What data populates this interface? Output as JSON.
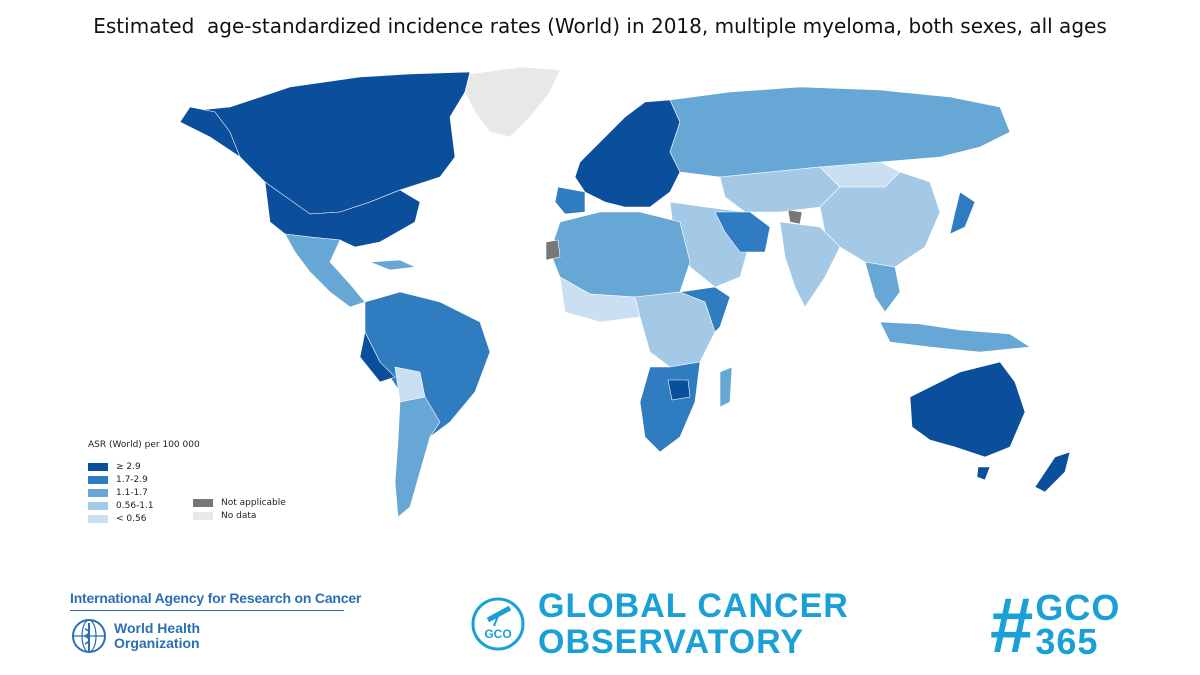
{
  "title": "Estimated  age-standardized incidence rates (World) in 2018, multiple myeloma, both sexes, all ages",
  "colors": {
    "ge_2_9": "#0b4f9c",
    "c1_7_2_9": "#2f7cc1",
    "c1_1_1_7": "#66a7d6",
    "c0_56_1_1": "#a3c9e6",
    "lt_0_56": "#cbdff2",
    "not_applicable": "#777777",
    "no_data": "#e8e8e8"
  },
  "legend": {
    "title": "ASR (World) per 100 000",
    "items": [
      {
        "label": "≥ 2.9",
        "color": "#0b4f9c"
      },
      {
        "label": "1.7-2.9",
        "color": "#2f7cc1"
      },
      {
        "label": "1.1-1.7",
        "color": "#66a7d6"
      },
      {
        "label": "0.56-1.1",
        "color": "#a3c9e6"
      },
      {
        "label": "< 0.56",
        "color": "#cbdff2"
      }
    ],
    "extra": [
      {
        "label": "Not applicable",
        "color": "#777777"
      },
      {
        "label": "No data",
        "color": "#e8e8e8"
      }
    ]
  },
  "footer": {
    "iarc": "International Agency for Research on Cancer",
    "who_line1": "World Health",
    "who_line2": "Organization",
    "gco_badge": "GCO",
    "gco_line1": "GLOBAL CANCER",
    "gco_line2": "OBSERVATORY",
    "hash_line1": "GCO",
    "hash_line2": "365"
  }
}
